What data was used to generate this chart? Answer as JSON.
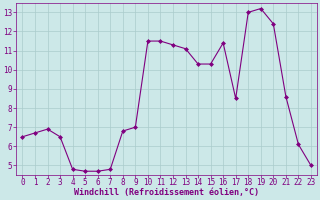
{
  "x": [
    0,
    1,
    2,
    3,
    4,
    5,
    6,
    7,
    8,
    9,
    10,
    11,
    12,
    13,
    14,
    15,
    16,
    17,
    18,
    19,
    20,
    21,
    22,
    23
  ],
  "y": [
    6.5,
    6.7,
    6.9,
    6.5,
    4.8,
    4.7,
    4.7,
    4.8,
    6.8,
    7.0,
    11.5,
    11.5,
    11.3,
    11.1,
    10.3,
    10.3,
    11.4,
    8.5,
    13.0,
    13.2,
    12.4,
    8.6,
    6.1,
    5.0
  ],
  "line_color": "#800080",
  "marker_color": "#800080",
  "bg_color": "#cce8e8",
  "grid_color": "#aacccc",
  "xlabel": "Windchill (Refroidissement éolien,°C)",
  "ylabel": "",
  "xlim": [
    -0.5,
    23.5
  ],
  "ylim": [
    4.5,
    13.5
  ],
  "yticks": [
    5,
    6,
    7,
    8,
    9,
    10,
    11,
    12,
    13
  ],
  "xticks": [
    0,
    1,
    2,
    3,
    4,
    5,
    6,
    7,
    8,
    9,
    10,
    11,
    12,
    13,
    14,
    15,
    16,
    17,
    18,
    19,
    20,
    21,
    22,
    23
  ],
  "tick_color": "#800080",
  "axis_color": "#800080",
  "xlabel_color": "#800080",
  "tick_fontsize": 5.5,
  "xlabel_fontsize": 6.0,
  "linewidth": 0.8,
  "markersize": 2.0
}
